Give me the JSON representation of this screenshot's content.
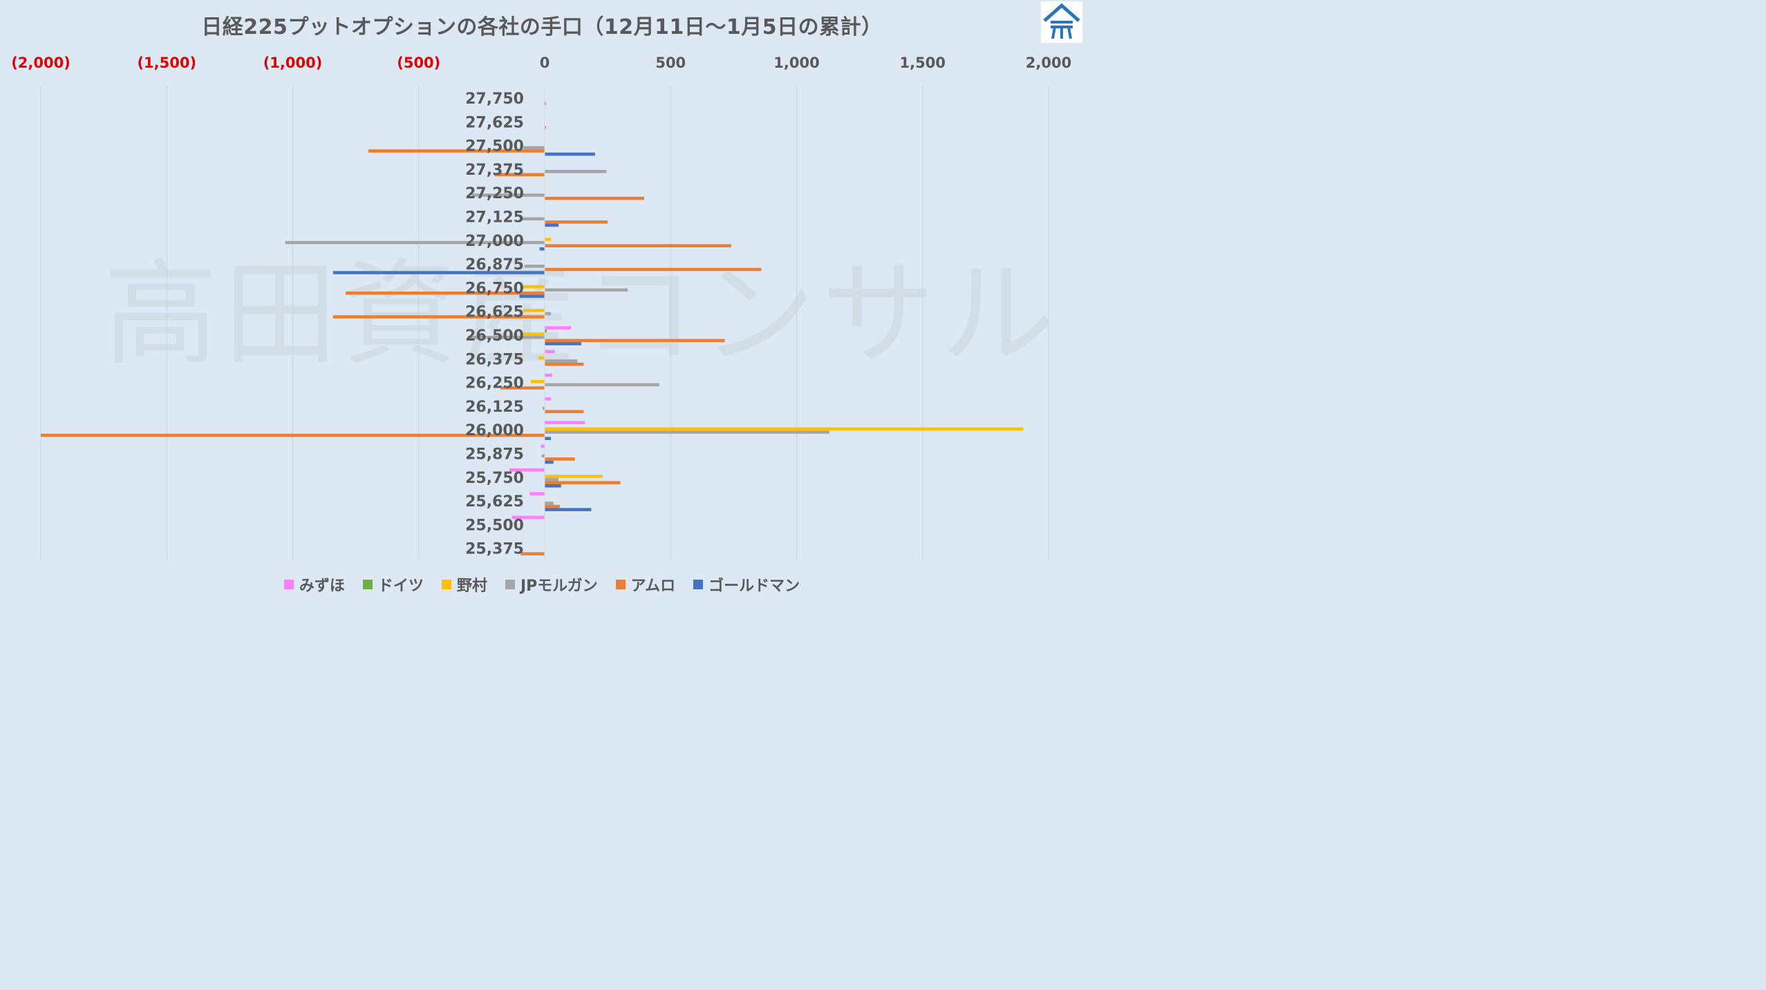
{
  "chart_data": {
    "type": "bar",
    "orientation": "horizontal",
    "title": "日経225プットオプションの各社の手口（12月11日～1月5日の累計）",
    "xlabel": "",
    "ylabel": "",
    "xlim": [
      -2000,
      2000
    ],
    "x_ticks": [
      -2000,
      -1500,
      -1000,
      -500,
      0,
      500,
      1000,
      1500,
      2000
    ],
    "x_tick_labels": [
      "(2,000)",
      "(1,500)",
      "(1,000)",
      "(500)",
      "0",
      "500",
      "1,000",
      "1,500",
      "2,000"
    ],
    "negative_tick_color": "#e00000",
    "positive_tick_color": "#595959",
    "axis_position": "top",
    "grid": true,
    "legend_position": "bottom",
    "categories": [
      "27,750",
      "27,625",
      "27,500",
      "27,375",
      "27,250",
      "27,125",
      "27,000",
      "26,875",
      "26,750",
      "26,625",
      "26,500",
      "26,375",
      "26,250",
      "26,125",
      "26,000",
      "25,875",
      "25,750",
      "25,625",
      "25,500",
      "25,375"
    ],
    "series": [
      {
        "name": "みずほ",
        "color": "#ff80ff",
        "values": [
          0,
          0,
          0,
          0,
          0,
          0,
          0,
          0,
          0,
          0,
          105,
          40,
          30,
          25,
          160,
          -15,
          -140,
          -60,
          -130,
          0
        ]
      },
      {
        "name": "ドイツ",
        "color": "#70ad47",
        "values": [
          0,
          0,
          0,
          0,
          0,
          0,
          0,
          0,
          0,
          0,
          8,
          0,
          0,
          0,
          0,
          0,
          0,
          0,
          0,
          0
        ]
      },
      {
        "name": "野村",
        "color": "#ffc000",
        "values": [
          0,
          0,
          0,
          0,
          0,
          0,
          25,
          0,
          -90,
          -85,
          -85,
          -25,
          -55,
          0,
          1900,
          0,
          230,
          0,
          0,
          0
        ]
      },
      {
        "name": "JPモルガン",
        "color": "#a5a5a5",
        "values": [
          0,
          0,
          -85,
          245,
          -290,
          -90,
          -1030,
          -80,
          330,
          25,
          -305,
          130,
          455,
          -8,
          1130,
          -12,
          55,
          35,
          0,
          0
        ]
      },
      {
        "name": "アムロ",
        "color": "#ed7d31",
        "values": [
          5,
          5,
          -700,
          -200,
          395,
          250,
          740,
          860,
          -790,
          -840,
          715,
          155,
          -175,
          155,
          -2000,
          120,
          300,
          60,
          0,
          -95
        ]
      },
      {
        "name": "ゴールドマン",
        "color": "#4472c4",
        "values": [
          0,
          0,
          200,
          0,
          0,
          55,
          -20,
          -840,
          -100,
          0,
          145,
          0,
          0,
          0,
          25,
          35,
          65,
          185,
          0,
          0
        ]
      }
    ]
  },
  "watermark": "高田資産コンサル",
  "logo": {
    "icon": "house-logo-icon",
    "color": "#2e75b6"
  }
}
